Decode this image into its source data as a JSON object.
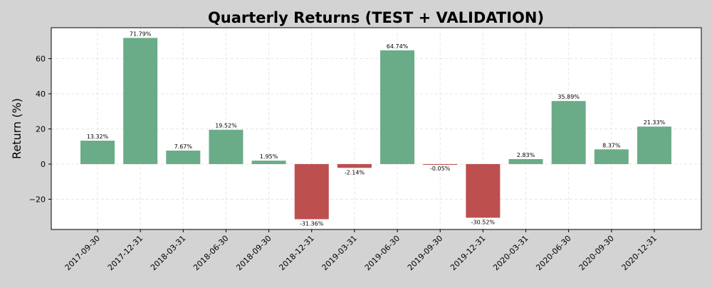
{
  "chart_data": {
    "type": "bar",
    "title": "Quarterly Returns (TEST + VALIDATION)",
    "xlabel": "",
    "ylabel": "Return (%)",
    "ylim": [
      -37.2,
      77.6
    ],
    "yticks": [
      -20,
      0,
      20,
      40,
      60
    ],
    "ytick_labels": [
      "−20",
      "0",
      "20",
      "40",
      "60"
    ],
    "grid": true,
    "categories": [
      "2017-09-30",
      "2017-12-31",
      "2018-03-31",
      "2018-06-30",
      "2018-09-30",
      "2018-12-31",
      "2019-03-31",
      "2019-06-30",
      "2019-09-30",
      "2019-12-31",
      "2020-03-31",
      "2020-06-30",
      "2020-09-30",
      "2020-12-31"
    ],
    "values": [
      13.32,
      71.79,
      7.67,
      19.52,
      1.95,
      -31.36,
      -2.14,
      64.74,
      -0.05,
      -30.52,
      2.83,
      35.89,
      8.37,
      21.33
    ],
    "data_labels": [
      "13.32%",
      "71.79%",
      "7.67%",
      "19.52%",
      "1.95%",
      "-31.36%",
      "-2.14%",
      "64.74%",
      "-0.05%",
      "-30.52%",
      "2.83%",
      "35.89%",
      "8.37%",
      "21.33%"
    ],
    "colors": {
      "positive": "#6aac88",
      "negative": "#bd4f4f",
      "plot_bg": "#ffffff",
      "figure_bg": "#d3d3d3"
    }
  }
}
